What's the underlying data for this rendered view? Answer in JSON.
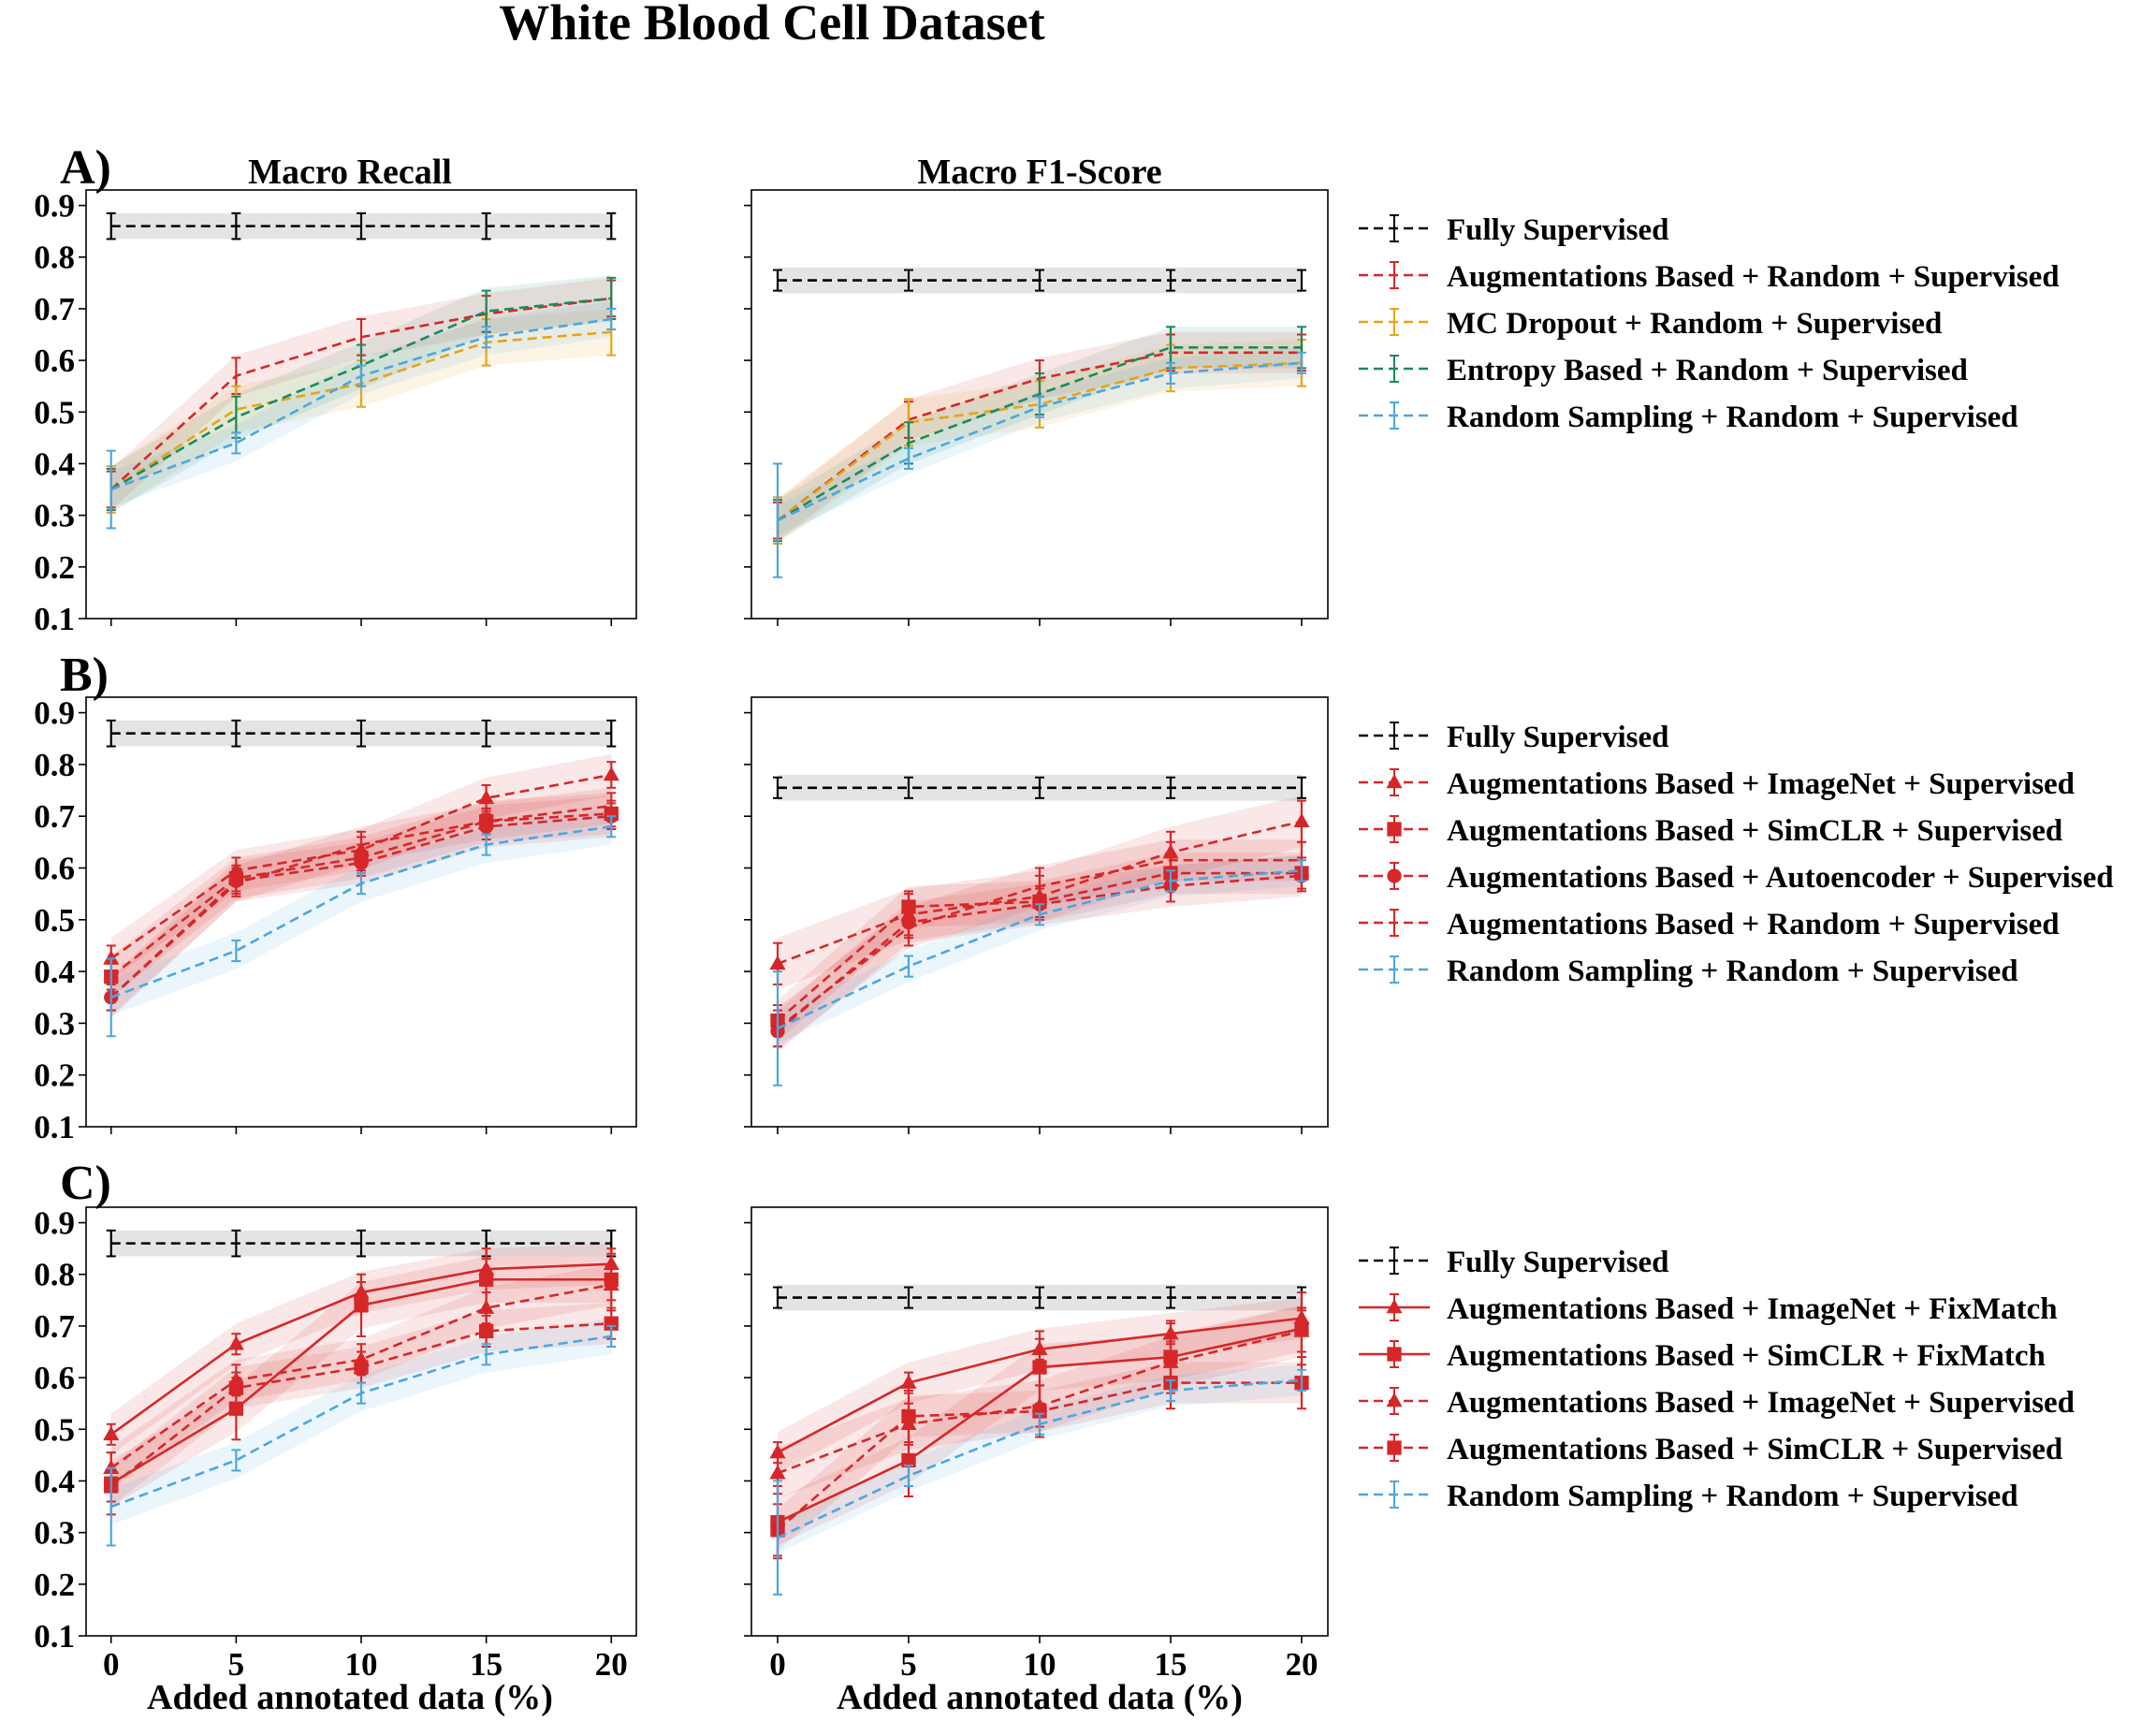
{
  "title": "White Blood Cell Dataset",
  "column_titles": [
    "Macro Recall",
    "Macro F1-Score"
  ],
  "row_labels": [
    "A)",
    "B)",
    "C)"
  ],
  "xlabel": "Added annotated data (%)",
  "x_ticks": [
    0,
    5,
    10,
    15,
    20
  ],
  "y_ticks": [
    0.1,
    0.2,
    0.3,
    0.4,
    0.5,
    0.6,
    0.7,
    0.8,
    0.9
  ],
  "ylim": [
    0.1,
    0.93
  ],
  "xlim": [
    -1,
    21
  ],
  "colors": {
    "black": "#000000",
    "red": "#d62728",
    "orange": "#e8a317",
    "green": "#1a8a5a",
    "blue": "#4ba6e0"
  },
  "chart_data": [
    {
      "type": "line",
      "panel": "A",
      "metric": "Macro Recall",
      "x": [
        0,
        5,
        10,
        15,
        20
      ],
      "series": [
        {
          "name": "Fully Supervised",
          "color": "black",
          "style": "dashed",
          "marker": "none",
          "values": [
            0.86,
            0.86,
            0.86,
            0.86,
            0.86
          ],
          "band": 0.025,
          "err": 0.025
        },
        {
          "name": "Augmentations Based +  Random + Supervised",
          "color": "red",
          "style": "dashed",
          "marker": "none",
          "values": [
            0.35,
            0.57,
            0.645,
            0.69,
            0.72
          ],
          "band": 0.04,
          "err": 0.035
        },
        {
          "name": "MC Dropout +  Random + Supervised",
          "color": "orange",
          "style": "dashed",
          "marker": "none",
          "values": [
            0.35,
            0.505,
            0.555,
            0.635,
            0.655
          ],
          "band": 0.045,
          "err": 0.045
        },
        {
          "name": "Entropy Based +  Random + Supervised",
          "color": "green",
          "style": "dashed",
          "marker": "none",
          "values": [
            0.35,
            0.49,
            0.59,
            0.695,
            0.72
          ],
          "band": 0.045,
          "err": 0.04
        },
        {
          "name": "Random Sampling +  Random + Supervised",
          "color": "blue",
          "style": "dashed",
          "marker": "none",
          "values": [
            0.35,
            0.44,
            0.57,
            0.645,
            0.68
          ],
          "band": 0.035,
          "err": 0.02,
          "err0": 0.075
        }
      ]
    },
    {
      "type": "line",
      "panel": "A",
      "metric": "Macro F1-Score",
      "x": [
        0,
        5,
        10,
        15,
        20
      ],
      "series": [
        {
          "name": "Fully Supervised",
          "color": "black",
          "style": "dashed",
          "marker": "none",
          "values": [
            0.755,
            0.755,
            0.755,
            0.755,
            0.755
          ],
          "band": 0.025,
          "err": 0.02
        },
        {
          "name": "Augmentations Based +  Random + Supervised",
          "color": "red",
          "style": "dashed",
          "marker": "none",
          "values": [
            0.29,
            0.485,
            0.565,
            0.615,
            0.615
          ],
          "band": 0.04,
          "err": 0.035
        },
        {
          "name": "MC Dropout +  Random + Supervised",
          "color": "orange",
          "style": "dashed",
          "marker": "none",
          "values": [
            0.29,
            0.48,
            0.515,
            0.585,
            0.595
          ],
          "band": 0.045,
          "err": 0.045
        },
        {
          "name": "Entropy Based +  Random + Supervised",
          "color": "green",
          "style": "dashed",
          "marker": "none",
          "values": [
            0.29,
            0.44,
            0.535,
            0.625,
            0.625
          ],
          "band": 0.04,
          "err": 0.04
        },
        {
          "name": "Random Sampling +  Random + Supervised",
          "color": "blue",
          "style": "dashed",
          "marker": "none",
          "values": [
            0.29,
            0.41,
            0.51,
            0.575,
            0.595
          ],
          "band": 0.03,
          "err": 0.02,
          "err0": 0.11
        }
      ]
    },
    {
      "type": "line",
      "panel": "B",
      "metric": "Macro Recall",
      "x": [
        0,
        5,
        10,
        15,
        20
      ],
      "series": [
        {
          "name": "Fully Supervised",
          "color": "black",
          "style": "dashed",
          "marker": "none",
          "values": [
            0.86,
            0.86,
            0.86,
            0.86,
            0.86
          ],
          "band": 0.025,
          "err": 0.025
        },
        {
          "name": "Augmentations Based + ImageNet + Supervised",
          "color": "red",
          "style": "dashed",
          "marker": "triangle",
          "values": [
            0.425,
            0.595,
            0.635,
            0.735,
            0.78
          ],
          "band": 0.04,
          "err": 0.025
        },
        {
          "name": "Augmentations Based + SimCLR + Supervised",
          "color": "red",
          "style": "dashed",
          "marker": "square",
          "values": [
            0.39,
            0.58,
            0.62,
            0.69,
            0.705
          ],
          "band": 0.04,
          "err": 0.025
        },
        {
          "name": "Augmentations Based + Autoencoder + Supervised",
          "color": "red",
          "style": "dashed",
          "marker": "circle",
          "values": [
            0.35,
            0.575,
            0.61,
            0.68,
            0.7
          ],
          "band": 0.04,
          "err": 0.025
        },
        {
          "name": "Augmentations Based +  Random + Supervised",
          "color": "red",
          "style": "dashed",
          "marker": "none",
          "values": [
            0.35,
            0.57,
            0.645,
            0.69,
            0.72
          ],
          "band": 0.035,
          "err": 0.025
        },
        {
          "name": "Random Sampling +  Random + Supervised",
          "color": "blue",
          "style": "dashed",
          "marker": "none",
          "values": [
            0.35,
            0.44,
            0.57,
            0.645,
            0.68
          ],
          "band": 0.035,
          "err": 0.02,
          "err0": 0.075
        }
      ]
    },
    {
      "type": "line",
      "panel": "B",
      "metric": "Macro F1-Score",
      "x": [
        0,
        5,
        10,
        15,
        20
      ],
      "series": [
        {
          "name": "Fully Supervised",
          "color": "black",
          "style": "dashed",
          "marker": "none",
          "values": [
            0.755,
            0.755,
            0.755,
            0.755,
            0.755
          ],
          "band": 0.025,
          "err": 0.02
        },
        {
          "name": "Augmentations Based + ImageNet + Supervised",
          "color": "red",
          "style": "dashed",
          "marker": "triangle",
          "values": [
            0.415,
            0.51,
            0.545,
            0.63,
            0.69
          ],
          "band": 0.05,
          "err": 0.04
        },
        {
          "name": "Augmentations Based + SimCLR + Supervised",
          "color": "red",
          "style": "dashed",
          "marker": "square",
          "values": [
            0.305,
            0.525,
            0.535,
            0.59,
            0.59
          ],
          "band": 0.04,
          "err": 0.03
        },
        {
          "name": "Augmentations Based + Autoencoder + Supervised",
          "color": "red",
          "style": "dashed",
          "marker": "circle",
          "values": [
            0.285,
            0.495,
            0.53,
            0.565,
            0.585
          ],
          "band": 0.04,
          "err": 0.03
        },
        {
          "name": "Augmentations Based +  Random + Supervised",
          "color": "red",
          "style": "dashed",
          "marker": "none",
          "values": [
            0.29,
            0.485,
            0.565,
            0.615,
            0.615
          ],
          "band": 0.04,
          "err": 0.035
        },
        {
          "name": "Random Sampling +  Random + Supervised",
          "color": "blue",
          "style": "dashed",
          "marker": "none",
          "values": [
            0.29,
            0.41,
            0.51,
            0.575,
            0.595
          ],
          "band": 0.03,
          "err": 0.02,
          "err0": 0.11
        }
      ]
    },
    {
      "type": "line",
      "panel": "C",
      "metric": "Macro Recall",
      "x": [
        0,
        5,
        10,
        15,
        20
      ],
      "series": [
        {
          "name": "Fully Supervised",
          "color": "black",
          "style": "dashed",
          "marker": "none",
          "values": [
            0.86,
            0.86,
            0.86,
            0.86,
            0.86
          ],
          "band": 0.025,
          "err": 0.025
        },
        {
          "name": "Augmentations Based + ImageNet + FixMatch",
          "color": "red",
          "style": "solid",
          "marker": "triangle",
          "values": [
            0.49,
            0.665,
            0.765,
            0.81,
            0.82
          ],
          "band": 0.04,
          "err": 0.02
        },
        {
          "name": "Augmentations Based + SimCLR + FixMatch",
          "color": "red",
          "style": "solid",
          "marker": "square",
          "values": [
            0.395,
            0.54,
            0.74,
            0.79,
            0.79
          ],
          "band": 0.045,
          "err": 0.06
        },
        {
          "name": "Augmentations Based + ImageNet + Supervised",
          "color": "red",
          "style": "dashed",
          "marker": "triangle",
          "values": [
            0.425,
            0.595,
            0.635,
            0.735,
            0.78
          ],
          "band": 0.04,
          "err": 0.03
        },
        {
          "name": "Augmentations Based + SimCLR + Supervised",
          "color": "red",
          "style": "dashed",
          "marker": "square",
          "values": [
            0.39,
            0.58,
            0.62,
            0.69,
            0.705
          ],
          "band": 0.04,
          "err": 0.03
        },
        {
          "name": "Random Sampling +  Random + Supervised",
          "color": "blue",
          "style": "dashed",
          "marker": "none",
          "values": [
            0.35,
            0.44,
            0.57,
            0.645,
            0.68
          ],
          "band": 0.035,
          "err": 0.02,
          "err0": 0.075
        }
      ]
    },
    {
      "type": "line",
      "panel": "C",
      "metric": "Macro F1-Score",
      "x": [
        0,
        5,
        10,
        15,
        20
      ],
      "series": [
        {
          "name": "Fully Supervised",
          "color": "black",
          "style": "dashed",
          "marker": "none",
          "values": [
            0.755,
            0.755,
            0.755,
            0.755,
            0.755
          ],
          "band": 0.025,
          "err": 0.02
        },
        {
          "name": "Augmentations Based + ImageNet + FixMatch",
          "color": "red",
          "style": "solid",
          "marker": "triangle",
          "values": [
            0.455,
            0.59,
            0.655,
            0.685,
            0.715
          ],
          "band": 0.04,
          "err": 0.02
        },
        {
          "name": "Augmentations Based + SimCLR + FixMatch",
          "color": "red",
          "style": "solid",
          "marker": "square",
          "values": [
            0.32,
            0.44,
            0.62,
            0.64,
            0.695
          ],
          "band": 0.045,
          "err": 0.07
        },
        {
          "name": "Augmentations Based + ImageNet + Supervised",
          "color": "red",
          "style": "dashed",
          "marker": "triangle",
          "values": [
            0.415,
            0.51,
            0.545,
            0.63,
            0.69
          ],
          "band": 0.05,
          "err": 0.04
        },
        {
          "name": "Augmentations Based + SimCLR + Supervised",
          "color": "red",
          "style": "dashed",
          "marker": "square",
          "values": [
            0.305,
            0.525,
            0.535,
            0.59,
            0.59
          ],
          "band": 0.04,
          "err": 0.05
        },
        {
          "name": "Random Sampling +  Random + Supervised",
          "color": "blue",
          "style": "dashed",
          "marker": "none",
          "values": [
            0.29,
            0.41,
            0.51,
            0.575,
            0.595
          ],
          "band": 0.03,
          "err": 0.02,
          "err0": 0.11
        }
      ]
    }
  ],
  "legends": [
    {
      "panel": "A",
      "entries": [
        {
          "label": "Fully Supervised",
          "color": "black",
          "style": "dashed",
          "marker": "none"
        },
        {
          "label": "Augmentations Based +  Random + Supervised",
          "color": "red",
          "style": "dashed",
          "marker": "none"
        },
        {
          "label": "MC Dropout +  Random + Supervised",
          "color": "orange",
          "style": "dashed",
          "marker": "none"
        },
        {
          "label": "Entropy Based +  Random + Supervised",
          "color": "green",
          "style": "dashed",
          "marker": "none"
        },
        {
          "label": "Random Sampling +  Random + Supervised",
          "color": "blue",
          "style": "dashed",
          "marker": "none"
        }
      ]
    },
    {
      "panel": "B",
      "entries": [
        {
          "label": "Fully Supervised",
          "color": "black",
          "style": "dashed",
          "marker": "none"
        },
        {
          "label": "Augmentations Based + ImageNet + Supervised",
          "color": "red",
          "style": "dashed",
          "marker": "triangle"
        },
        {
          "label": "Augmentations Based + SimCLR + Supervised",
          "color": "red",
          "style": "dashed",
          "marker": "square"
        },
        {
          "label": "Augmentations Based + Autoencoder + Supervised",
          "color": "red",
          "style": "dashed",
          "marker": "circle"
        },
        {
          "label": "Augmentations Based +  Random + Supervised",
          "color": "red",
          "style": "dashed",
          "marker": "none"
        },
        {
          "label": "Random Sampling +  Random + Supervised",
          "color": "blue",
          "style": "dashed",
          "marker": "none"
        }
      ]
    },
    {
      "panel": "C",
      "entries": [
        {
          "label": "Fully Supervised",
          "color": "black",
          "style": "dashed",
          "marker": "none"
        },
        {
          "label": "Augmentations Based + ImageNet + FixMatch",
          "color": "red",
          "style": "solid",
          "marker": "triangle"
        },
        {
          "label": "Augmentations Based + SimCLR + FixMatch",
          "color": "red",
          "style": "solid",
          "marker": "square"
        },
        {
          "label": "Augmentations Based + ImageNet + Supervised",
          "color": "red",
          "style": "dashed",
          "marker": "triangle"
        },
        {
          "label": "Augmentations Based + SimCLR + Supervised",
          "color": "red",
          "style": "dashed",
          "marker": "square"
        },
        {
          "label": "Random Sampling +  Random + Supervised",
          "color": "blue",
          "style": "dashed",
          "marker": "none"
        }
      ]
    }
  ]
}
